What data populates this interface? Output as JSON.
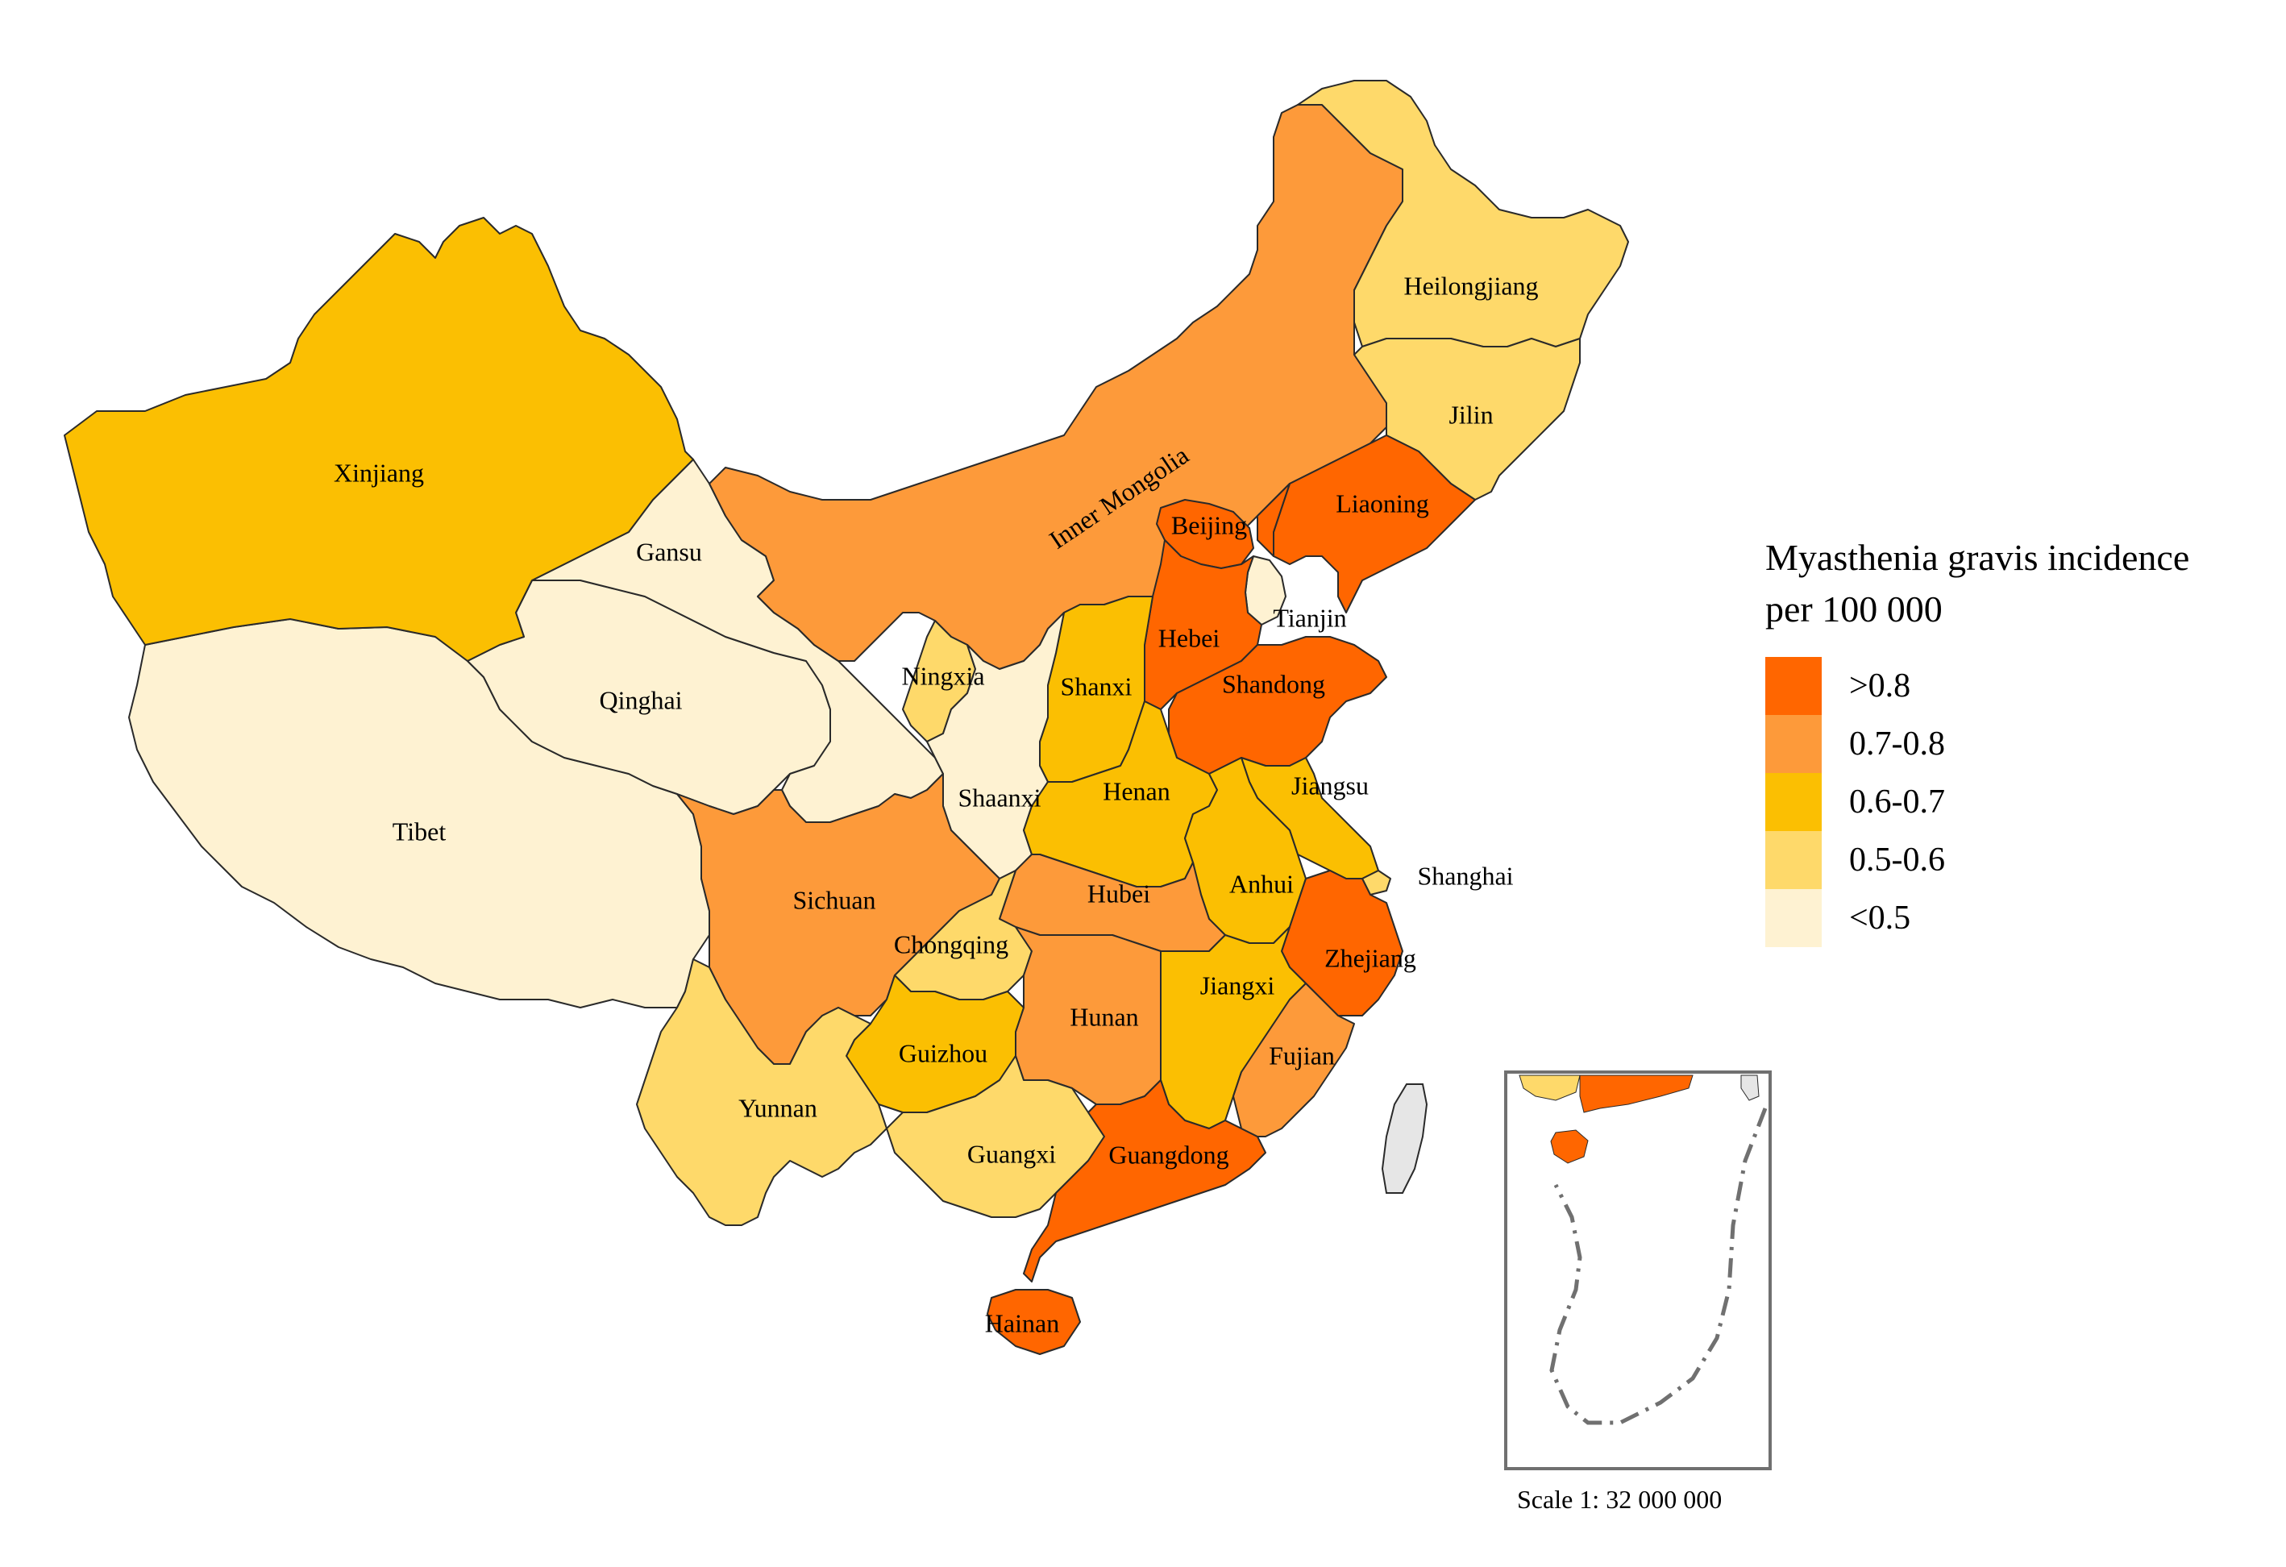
{
  "legend": {
    "title_line1": "Myasthenia gravis incidence",
    "title_line2": "per 100 000",
    "classes": [
      {
        "label": ">0.8",
        "color": "#ff6600"
      },
      {
        "label": "0.7-0.8",
        "color": "#fd9a3a"
      },
      {
        "label": "0.6-0.7",
        "color": "#fbbf02"
      },
      {
        "label": "0.5-0.6",
        "color": "#fed96a"
      },
      {
        "label": "<0.5",
        "color": "#fef2d2"
      }
    ]
  },
  "provinces": [
    {
      "id": "xinjiang",
      "name": "Xinjiang",
      "class": "0.6-0.7"
    },
    {
      "id": "tibet",
      "name": "Tibet",
      "class": "<0.5"
    },
    {
      "id": "qinghai",
      "name": "Qinghai",
      "class": "<0.5"
    },
    {
      "id": "gansu",
      "name": "Gansu",
      "class": "<0.5"
    },
    {
      "id": "inner-mongolia",
      "name": "Inner Mongolia",
      "class": "0.7-0.8"
    },
    {
      "id": "heilongjiang",
      "name": "Heilongjiang",
      "class": "0.5-0.6"
    },
    {
      "id": "jilin",
      "name": "Jilin",
      "class": "0.5-0.6"
    },
    {
      "id": "liaoning",
      "name": "Liaoning",
      "class": ">0.8"
    },
    {
      "id": "beijing",
      "name": "Beijing",
      "class": ">0.8"
    },
    {
      "id": "tianjin",
      "name": "Tianjin",
      "class": "<0.5"
    },
    {
      "id": "hebei",
      "name": "Hebei",
      "class": ">0.8"
    },
    {
      "id": "shanxi",
      "name": "Shanxi",
      "class": "0.6-0.7"
    },
    {
      "id": "ningxia",
      "name": "Ningxia",
      "class": "0.5-0.6"
    },
    {
      "id": "shaanxi",
      "name": "Shaanxi",
      "class": "<0.5"
    },
    {
      "id": "shandong",
      "name": "Shandong",
      "class": ">0.8"
    },
    {
      "id": "henan",
      "name": "Henan",
      "class": "0.6-0.7"
    },
    {
      "id": "jiangsu",
      "name": "Jiangsu",
      "class": "0.6-0.7"
    },
    {
      "id": "shanghai",
      "name": "Shanghai",
      "class": "0.5-0.6"
    },
    {
      "id": "anhui",
      "name": "Anhui",
      "class": "0.6-0.7"
    },
    {
      "id": "hubei",
      "name": "Hubei",
      "class": "0.7-0.8"
    },
    {
      "id": "sichuan",
      "name": "Sichuan",
      "class": "0.7-0.8"
    },
    {
      "id": "chongqing",
      "name": "Chongqing",
      "class": "0.5-0.6"
    },
    {
      "id": "zhejiang",
      "name": "Zhejiang",
      "class": ">0.8"
    },
    {
      "id": "jiangxi",
      "name": "Jiangxi",
      "class": "0.6-0.7"
    },
    {
      "id": "hunan",
      "name": "Hunan",
      "class": "0.7-0.8"
    },
    {
      "id": "guizhou",
      "name": "Guizhou",
      "class": "0.6-0.7"
    },
    {
      "id": "yunnan",
      "name": "Yunnan",
      "class": "0.5-0.6"
    },
    {
      "id": "guangxi",
      "name": "Guangxi",
      "class": "0.5-0.6"
    },
    {
      "id": "guangdong",
      "name": "Guangdong",
      "class": ">0.8"
    },
    {
      "id": "fujian",
      "name": "Fujian",
      "class": "0.7-0.8"
    },
    {
      "id": "hainan",
      "name": "Hainan",
      "class": ">0.8"
    }
  ],
  "other_colors": {
    "taiwan": "#e6e6e6",
    "inset_border": "#707070",
    "dash_line": "#707070"
  },
  "scale_text": "Scale 1: 32 000 000"
}
